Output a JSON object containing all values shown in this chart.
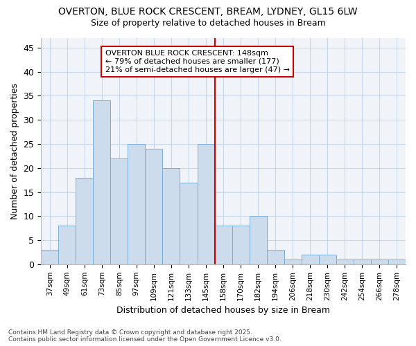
{
  "title_line1": "OVERTON, BLUE ROCK CRESCENT, BREAM, LYDNEY, GL15 6LW",
  "title_line2": "Size of property relative to detached houses in Bream",
  "xlabel": "Distribution of detached houses by size in Bream",
  "ylabel": "Number of detached properties",
  "bar_values": [
    3,
    8,
    18,
    34,
    22,
    25,
    24,
    20,
    17,
    25,
    8,
    8,
    10,
    3,
    1,
    2,
    2,
    1,
    1,
    1,
    1
  ],
  "bar_labels": [
    "37sqm",
    "49sqm",
    "61sqm",
    "73sqm",
    "85sqm",
    "97sqm",
    "109sqm",
    "121sqm",
    "133sqm",
    "145sqm",
    "158sqm",
    "170sqm",
    "182sqm",
    "194sqm",
    "206sqm",
    "218sqm",
    "230sqm",
    "242sqm",
    "254sqm",
    "266sqm",
    "278sqm"
  ],
  "bar_color": "#cddcec",
  "bar_edge_color": "#7aaed4",
  "bar_edge_width": 0.7,
  "vline_x": 9.5,
  "vline_color": "#cc0000",
  "annotation_text": "OVERTON BLUE ROCK CRESCENT: 148sqm\n← 79% of detached houses are smaller (177)\n21% of semi-detached houses are larger (47) →",
  "annotation_box_color": "#ffffff",
  "annotation_border_color": "#cc0000",
  "ylim": [
    0,
    47
  ],
  "yticks": [
    0,
    5,
    10,
    15,
    20,
    25,
    30,
    35,
    40,
    45
  ],
  "grid_color": "#c8d8e8",
  "bg_color": "#ffffff",
  "plot_bg_color": "#f0f4f8",
  "footnote": "Contains HM Land Registry data © Crown copyright and database right 2025.\nContains public sector information licensed under the Open Government Licence v3.0."
}
